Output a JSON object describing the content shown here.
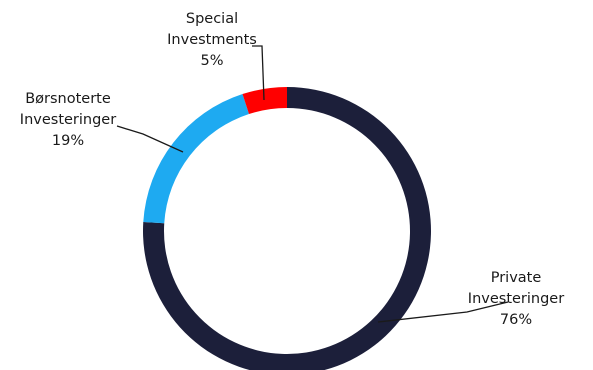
{
  "chart_data": {
    "type": "pie",
    "variant": "donut",
    "categories": [
      "Private Investeringer",
      "Børsnoterte Investeringer",
      "Special Investments"
    ],
    "values": [
      76,
      19,
      5
    ],
    "data_labels": [
      "Private\nInvesteringer\n76%",
      "Børsnoterte\nInvesteringer\n19%",
      "Special\nInvestments\n5%"
    ],
    "colors": [
      "#1c1f3a",
      "#1eaaf1",
      "#ff0000"
    ]
  }
}
